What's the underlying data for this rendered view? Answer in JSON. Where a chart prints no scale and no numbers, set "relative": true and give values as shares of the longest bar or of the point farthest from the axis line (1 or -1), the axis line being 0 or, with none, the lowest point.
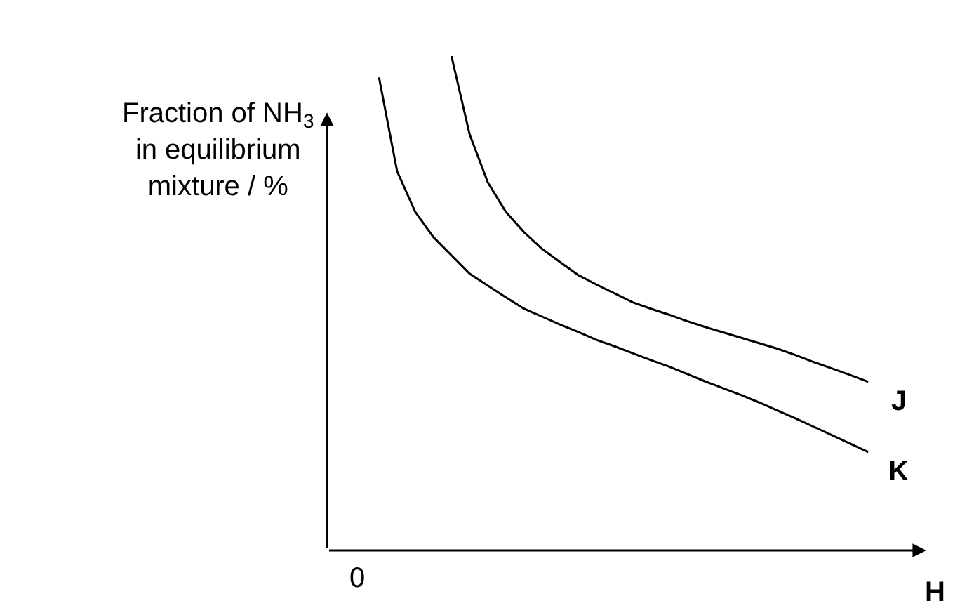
{
  "chart_data": {
    "type": "line",
    "relative": true,
    "ylabel": "Fraction of NH$_{3}$\nin equilibrium\nmixture / %",
    "xlabel": "H",
    "annotations": [
      "0"
    ],
    "marker": "none",
    "line_style": "solid",
    "legend": false,
    "categories": [
      null,
      null,
      null,
      null,
      null,
      null,
      null,
      null,
      null,
      null,
      null,
      null,
      null,
      null,
      null,
      null,
      null,
      null,
      null,
      null,
      null,
      null,
      null,
      null,
      null,
      null,
      null,
      null
    ],
    "series": [
      {
        "name": "J",
        "color": "#000000",
        "values": [
          null,
          null,
          null,
          null,
          1,
          0.842,
          0.745,
          0.685,
          0.644,
          0.61,
          0.583,
          0.557,
          0.538,
          0.52,
          0.502,
          0.489,
          0.477,
          0.464,
          0.452,
          0.441,
          0.43,
          0.419,
          0.408,
          0.395,
          0.381,
          0.368,
          0.355,
          0.341
        ]
      },
      {
        "name": "K",
        "color": "#000000",
        "values": [
          0.957,
          0.767,
          0.685,
          0.634,
          0.597,
          0.56,
          0.536,
          0.512,
          0.489,
          0.473,
          0.457,
          0.442,
          0.426,
          0.413,
          0.399,
          0.385,
          0.372,
          0.357,
          0.342,
          0.328,
          0.314,
          0.299,
          0.283,
          0.267,
          0.25,
          0.233,
          0.216,
          0.199
        ]
      }
    ]
  }
}
